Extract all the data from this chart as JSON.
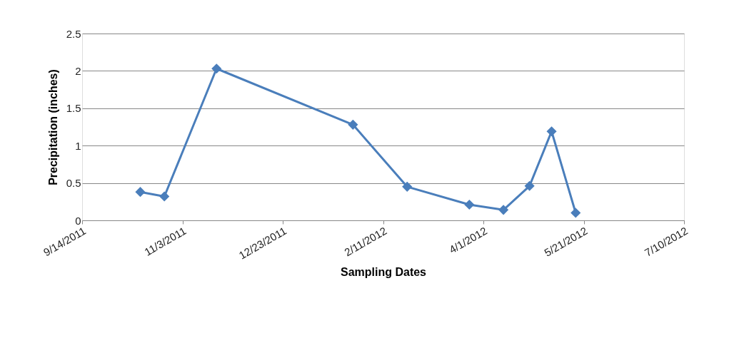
{
  "chart_data": {
    "type": "line",
    "xlabel": "Sampling Dates",
    "ylabel": "Precipitation (inches)",
    "x": [
      "2011-10-13",
      "2011-10-25",
      "2011-11-20",
      "2012-01-27",
      "2012-02-23",
      "2012-03-25",
      "2012-04-11",
      "2012-04-24",
      "2012-05-05",
      "2012-05-17"
    ],
    "series": [
      {
        "color": "#4a7ebb",
        "values": [
          0.38,
          0.32,
          2.03,
          1.28,
          0.45,
          0.21,
          0.14,
          0.46,
          1.19,
          0.1
        ]
      }
    ],
    "xlim": [
      "2011-09-14",
      "2012-07-10"
    ],
    "xticks": [
      {
        "value": "2011-09-14",
        "label": "9/14/2011"
      },
      {
        "value": "2011-11-03",
        "label": "11/3/2011"
      },
      {
        "value": "2011-12-23",
        "label": "12/23/2011"
      },
      {
        "value": "2012-02-11",
        "label": "2/11/2012"
      },
      {
        "value": "2012-04-01",
        "label": "4/1/2012"
      },
      {
        "value": "2012-05-21",
        "label": "5/21/2012"
      },
      {
        "value": "2012-07-10",
        "label": "7/10/2012"
      }
    ],
    "ylim": [
      0,
      2.5
    ],
    "yticks": [
      0,
      0.5,
      1,
      1.5,
      2,
      2.5
    ],
    "grid": "y",
    "marker": "diamond",
    "line_style": "solid",
    "legend": false
  }
}
